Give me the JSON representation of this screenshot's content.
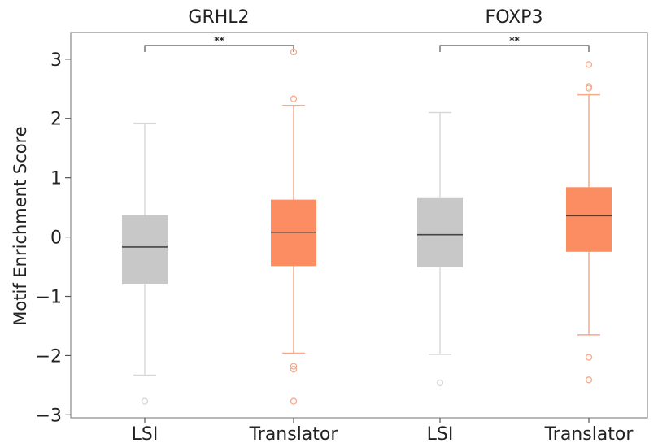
{
  "chart_data": {
    "type": "box",
    "ylabel": "Motif Enrichment Score",
    "ylim": [
      -3.05,
      3.45
    ],
    "yticks": [
      3,
      2,
      1,
      0,
      -1,
      -2,
      -3
    ],
    "ytick_labels": [
      "3",
      "2",
      "1",
      "0",
      "−1",
      "−2",
      "−3"
    ],
    "grid": false,
    "colors": {
      "LSI": "#c8c8c8",
      "Translator": "#fc8d62",
      "LSI_outline": "#d8d8d8",
      "Translator_outline": "#f7a98a",
      "median": "#444444"
    },
    "panels": [
      {
        "title": "GRHL2",
        "significance": "**",
        "boxes": [
          {
            "group": "LSI",
            "label": "LSI",
            "whisker_low": -2.33,
            "q1": -0.8,
            "median": -0.17,
            "q3": 0.37,
            "whisker_high": 1.92,
            "outliers": [
              -2.77
            ]
          },
          {
            "group": "Translator",
            "label": "Translator",
            "whisker_low": -1.96,
            "q1": -0.49,
            "median": 0.08,
            "q3": 0.63,
            "whisker_high": 2.22,
            "outliers": [
              3.12,
              2.33,
              -2.18,
              -2.23,
              -2.77
            ]
          }
        ]
      },
      {
        "title": "FOXP3",
        "significance": "**",
        "boxes": [
          {
            "group": "LSI",
            "label": "LSI",
            "whisker_low": -1.98,
            "q1": -0.51,
            "median": 0.04,
            "q3": 0.67,
            "whisker_high": 2.1,
            "outliers": [
              -2.46
            ]
          },
          {
            "group": "Translator",
            "label": "Translator",
            "whisker_low": -1.65,
            "q1": -0.25,
            "median": 0.36,
            "q3": 0.84,
            "whisker_high": 2.4,
            "outliers": [
              2.91,
              2.54,
              2.51,
              -2.03,
              -2.41
            ]
          }
        ]
      }
    ]
  }
}
